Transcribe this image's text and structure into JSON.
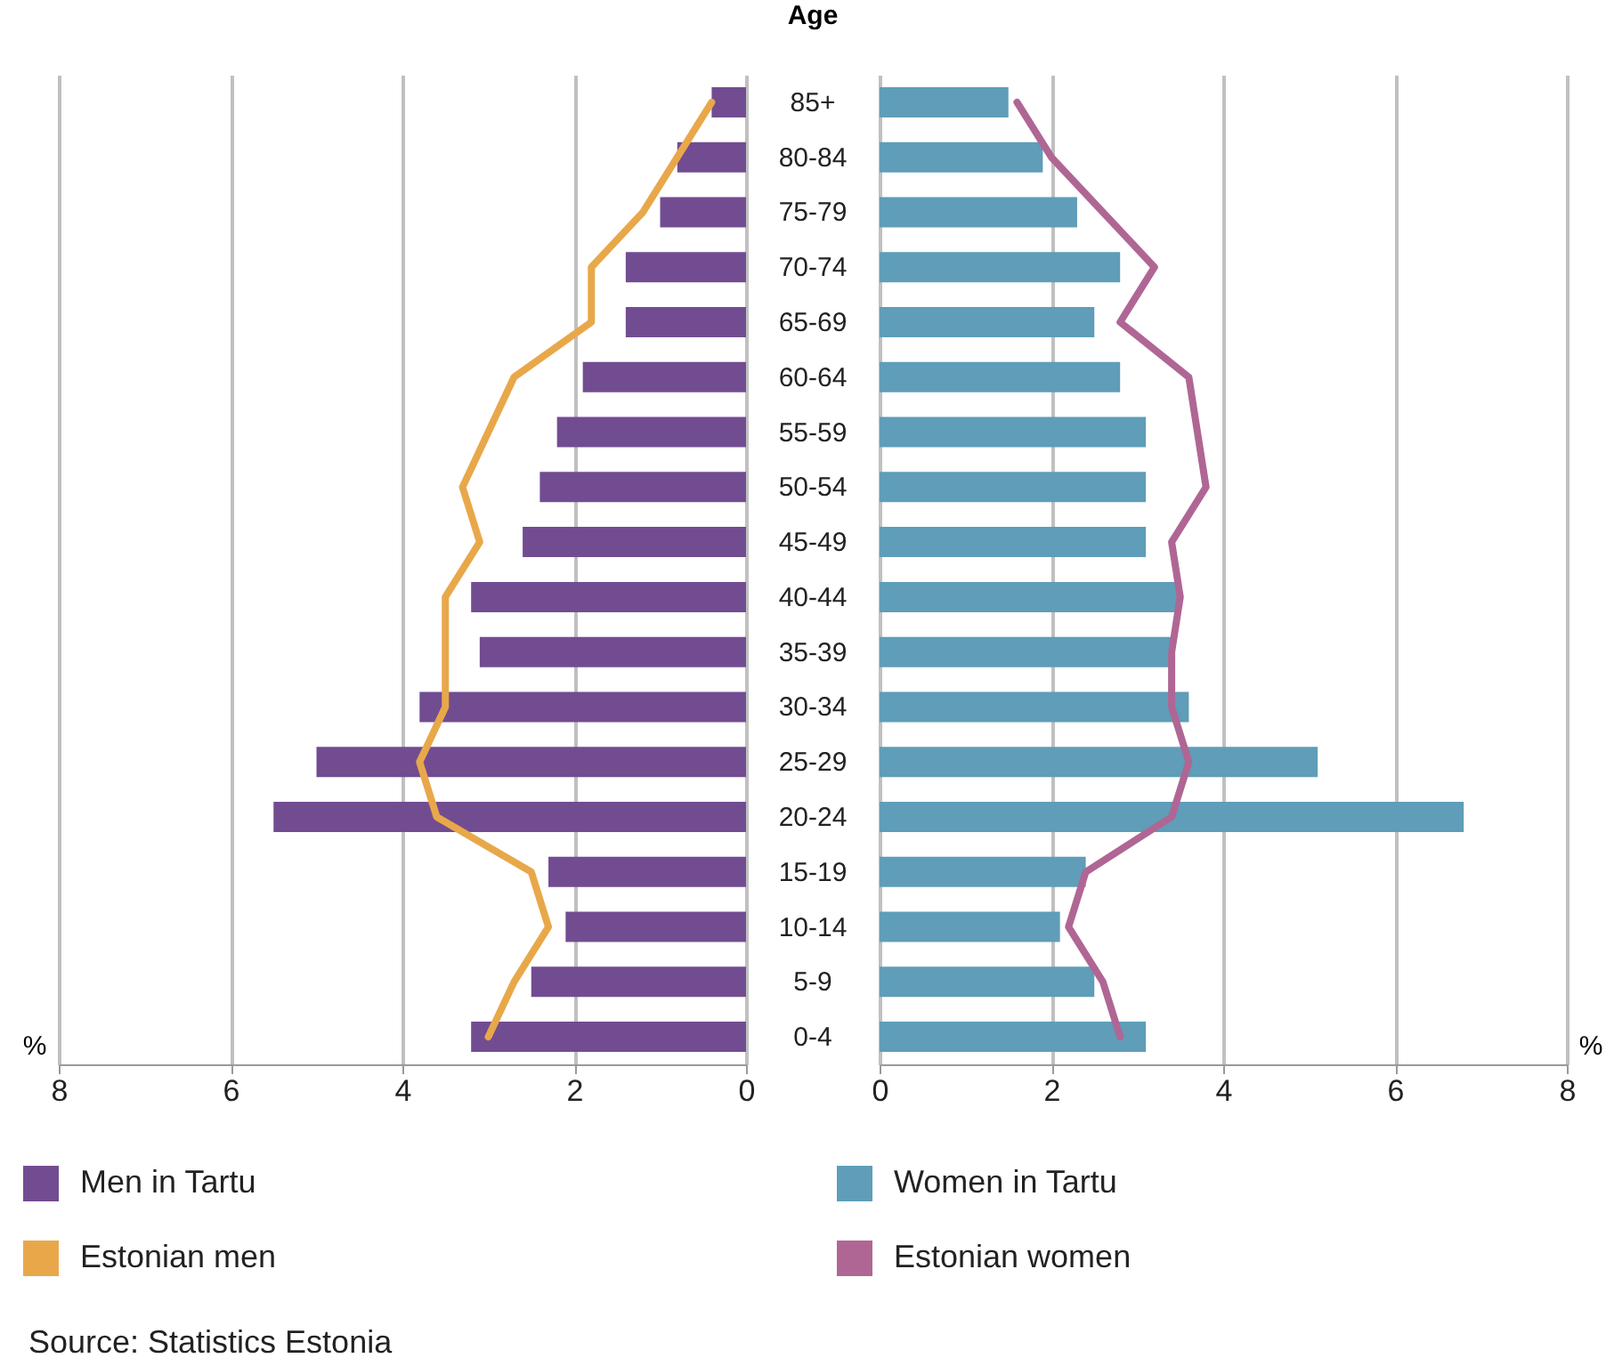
{
  "chart_data": [
    {
      "type": "bar",
      "orientation": "horizontal",
      "ylabel": "Age",
      "xlabel": "%",
      "categories": [
        "85+",
        "80-84",
        "75-79",
        "70-74",
        "65-69",
        "60-64",
        "55-59",
        "50-54",
        "45-49",
        "40-44",
        "35-39",
        "30-34",
        "25-29",
        "20-24",
        "15-19",
        "10-14",
        "5-9",
        "0-4"
      ],
      "xlim": [
        8,
        0
      ],
      "xticks": [
        8,
        6,
        4,
        2,
        0
      ],
      "grid": "x",
      "legend": "bottom left",
      "series": [
        {
          "name": "Men in Tartu",
          "color": "#724c91",
          "values": [
            0.4,
            0.8,
            1.0,
            1.4,
            1.4,
            1.9,
            2.2,
            2.4,
            2.6,
            3.2,
            3.1,
            3.8,
            5.0,
            5.5,
            2.3,
            2.1,
            2.5,
            3.2
          ]
        },
        {
          "name": "Estonian men",
          "type": "line",
          "color": "#e8a84a",
          "values": [
            0.4,
            0.8,
            1.2,
            1.8,
            1.8,
            2.7,
            3.0,
            3.3,
            3.1,
            3.5,
            3.5,
            3.5,
            3.8,
            3.6,
            2.5,
            2.3,
            2.7,
            3.0
          ]
        }
      ],
      "annotations": [
        "Source: Statistics Estonia"
      ]
    },
    {
      "type": "bar",
      "orientation": "horizontal",
      "xlabel": "%",
      "categories": [
        null,
        null,
        null,
        null,
        null,
        null,
        null,
        null,
        null,
        null,
        null,
        null,
        null,
        null,
        null,
        null,
        null,
        null
      ],
      "xlim": [
        0,
        8
      ],
      "xticks": [
        0,
        2,
        4,
        6,
        8
      ],
      "grid": "x",
      "tick_labels": "x",
      "legend": "bottom left",
      "series": [
        {
          "name": "Women in Tartu",
          "color": "#5f9db8",
          "values": [
            1.5,
            1.9,
            2.3,
            2.8,
            2.5,
            2.8,
            3.1,
            3.1,
            3.1,
            3.5,
            3.4,
            3.6,
            5.1,
            6.8,
            2.4,
            2.1,
            2.5,
            3.1
          ]
        },
        {
          "name": "Estonian women",
          "type": "line",
          "color": "#b06694",
          "values": [
            1.6,
            2.0,
            2.6,
            3.2,
            2.8,
            3.6,
            3.7,
            3.8,
            3.4,
            3.5,
            3.4,
            3.4,
            3.6,
            3.4,
            2.4,
            2.2,
            2.6,
            2.8
          ]
        }
      ]
    }
  ]
}
